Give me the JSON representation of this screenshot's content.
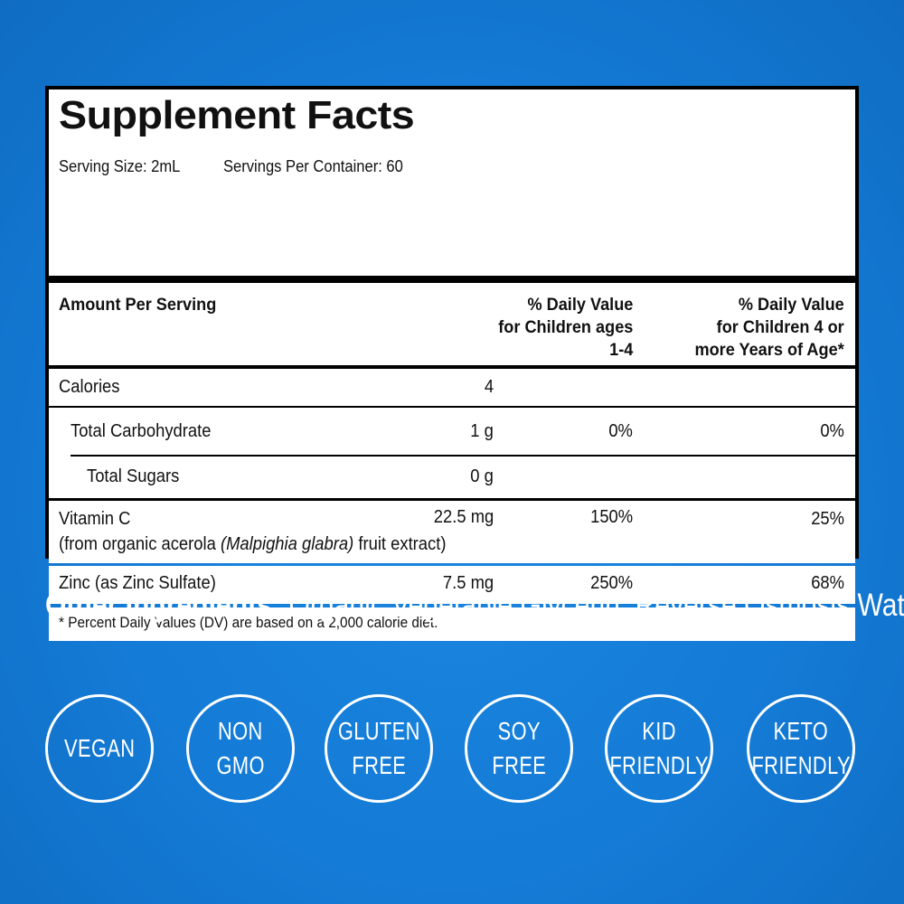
{
  "facts": {
    "title": "Supplement Facts",
    "serving_size": "Serving Size: 2mL",
    "servings_per_container": "Servings Per Container: 60",
    "headers": {
      "amount": "Amount Per Serving",
      "dv_children_1_4": [
        "% Daily Value",
        "for Children ages",
        "1-4"
      ],
      "dv_children_4_plus": [
        "% Daily Value",
        "for Children 4 or",
        "more Years of Age*"
      ]
    },
    "rows": [
      {
        "name": "Calories",
        "amount": "4",
        "dv1": "",
        "dv2": ""
      },
      {
        "name": "Total Carbohydrate",
        "amount": "1 g",
        "dv1": "0%",
        "dv2": "0%"
      },
      {
        "name": "Total Sugars",
        "amount": "0 g",
        "dv1": "",
        "dv2": ""
      },
      {
        "name": "Vitamin C",
        "amount": "22.5 mg",
        "dv1": "150%",
        "dv2": "25%"
      },
      {
        "name": "Zinc (as Zinc Sulfate)",
        "amount": "7.5 mg",
        "dv1": "250%",
        "dv2": "68%"
      }
    ],
    "vitamin_c_source": {
      "prefix": "(from organic acerola ",
      "latin": "(Malpighia glabra)",
      "suffix": " fruit extract)"
    },
    "footnote": "* Percent Daily Values (DV) are based on a 2,000 calorie diet."
  },
  "other_ingredients": {
    "label": "Other Ingredients:",
    "text": "Organic Vegetable Glycerin, Reverse Osmosis Water."
  },
  "badges": [
    {
      "lines": [
        "VEGAN"
      ]
    },
    {
      "lines": [
        "NON",
        "GMO"
      ]
    },
    {
      "lines": [
        "GLUTEN",
        "FREE"
      ]
    },
    {
      "lines": [
        "SOY",
        "FREE"
      ]
    },
    {
      "lines": [
        "KID",
        "FRIENDLY"
      ]
    },
    {
      "lines": [
        "KETO",
        "FRIENDLY"
      ]
    }
  ],
  "colors": {
    "background": "#147bd6",
    "panel_border": "#000000",
    "panel_fill": "#ffffff",
    "text_light": "#ffffff"
  }
}
